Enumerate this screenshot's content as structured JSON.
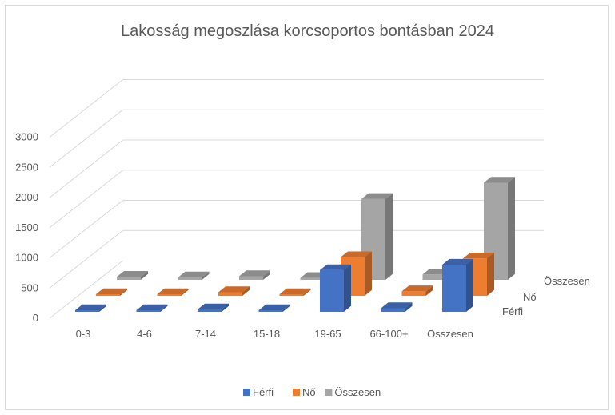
{
  "chart_data": {
    "type": "bar",
    "title": "Lakosság megoszlása korcsoportos bontásban 2024",
    "categories": [
      "0-3",
      "4-6",
      "7-14",
      "15-18",
      "19-65",
      "66-100+",
      "Összesen"
    ],
    "series": [
      {
        "name": "Férfi",
        "values": [
          10,
          8,
          40,
          12,
          690,
          60,
          780
        ]
      },
      {
        "name": "Nő",
        "values": [
          12,
          8,
          60,
          14,
          640,
          75,
          620
        ]
      },
      {
        "name": "Összesen",
        "values": [
          50,
          40,
          60,
          30,
          1340,
          90,
          1610
        ]
      }
    ],
    "ylim": [
      0,
      3000
    ],
    "yticks": [
      "0",
      "500",
      "1000",
      "1500",
      "2000",
      "2500",
      "3000"
    ],
    "grid": true,
    "legend_position": "bottom",
    "colors": {
      "Férfi": "#4472c4",
      "Nő": "#ed7d31",
      "Összesen": "#a5a5a5"
    }
  }
}
